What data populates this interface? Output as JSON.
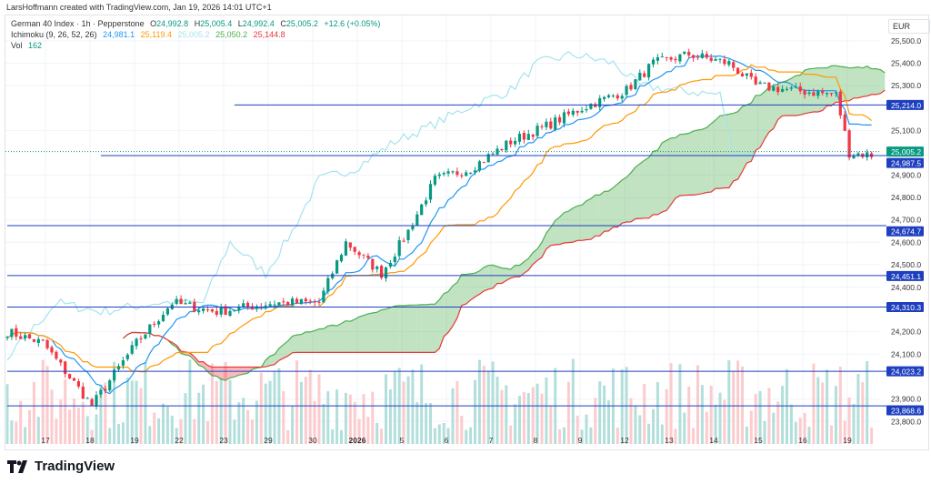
{
  "header": {
    "credit": "LarsHoffmann created with TradingView.com, Jan 19, 2026 14:01 UTC+1"
  },
  "legend": {
    "symbol": "German 40 Index · 1h · Pepperstone",
    "o_label": "O",
    "o": "24,992.8",
    "h_label": "H",
    "h": "25,005.4",
    "l_label": "L",
    "l": "24,992.4",
    "c_label": "C",
    "c": "25,005.2",
    "change": "+12.6 (+0.05%)",
    "ichimoku": "Ichimoku (9, 26, 52, 26)",
    "tenkan": "24,981.1",
    "kijun": "25,119.4",
    "chikou": "25,005.2",
    "span_a": "25,050.2",
    "span_b": "25,144.8",
    "vol_label": "Vol",
    "vol": "162"
  },
  "currency": "EUR",
  "brand": "TradingView",
  "colors": {
    "up": "#089981",
    "down": "#f23645",
    "tenkan": "#2196f3",
    "kijun": "#ff9800",
    "chikou": "#a6e3ef",
    "spanA": "#4caf50",
    "spanB": "#e53935",
    "hline": "#1e3fbf"
  },
  "chart_data": {
    "type": "candlestick",
    "title": "German 40 Index · 1h · Pepperstone",
    "ylim": [
      23760,
      25560
    ],
    "yticks": [
      "25,500.0",
      "25,400.0",
      "25,300.0",
      "25,100.0",
      "24,900.0",
      "24,800.0",
      "24,700.0",
      "24,600.0",
      "24,500.0",
      "24,400.0",
      "24,200.0",
      "24,100.0",
      "23,900.0",
      "23,800.0"
    ],
    "ytick_values": [
      25500,
      25400,
      25300,
      25100,
      24900,
      24800,
      24700,
      24600,
      24500,
      24400,
      24200,
      24100,
      23900,
      23800
    ],
    "xticks": [
      "17",
      "18",
      "19",
      "22",
      "23",
      "29",
      "30",
      "2026",
      "5",
      "6",
      "7",
      "8",
      "9",
      "12",
      "13",
      "14",
      "15",
      "16",
      "19"
    ],
    "close_keypoints": [
      [
        0,
        24200
      ],
      [
        8,
        24150
      ],
      [
        19,
        23870
      ],
      [
        29,
        24150
      ],
      [
        37,
        24330
      ],
      [
        47,
        24290
      ],
      [
        60,
        24330
      ],
      [
        70,
        24330
      ],
      [
        76,
        24600
      ],
      [
        84,
        24460
      ],
      [
        90,
        24650
      ],
      [
        96,
        24880
      ],
      [
        104,
        24930
      ],
      [
        113,
        25050
      ],
      [
        121,
        25120
      ],
      [
        129,
        25200
      ],
      [
        139,
        25280
      ],
      [
        145,
        25400
      ],
      [
        153,
        25440
      ],
      [
        162,
        25400
      ],
      [
        168,
        25300
      ],
      [
        176,
        25280
      ],
      [
        186,
        25260
      ],
      [
        189,
        25000
      ],
      [
        194,
        24990
      ]
    ],
    "horizontal_levels": [
      {
        "value": 25214.0,
        "label": "25,214.0",
        "from_bar": 51
      },
      {
        "value": 24987.5,
        "label": "24,987.5",
        "from_bar": 21
      },
      {
        "value": 24674.7,
        "label": "24,674.7",
        "from_bar": 0
      },
      {
        "value": 24451.1,
        "label": "24,451.1",
        "from_bar": 0
      },
      {
        "value": 24310.3,
        "label": "24,310.3",
        "from_bar": 0
      },
      {
        "value": 24023.2,
        "label": "24,023.2",
        "from_bar": 0
      },
      {
        "value": 23868.6,
        "label": "23,868.6",
        "from_bar": 0
      }
    ],
    "last_price": {
      "value": 25005.2,
      "label": "25,005.2"
    }
  }
}
